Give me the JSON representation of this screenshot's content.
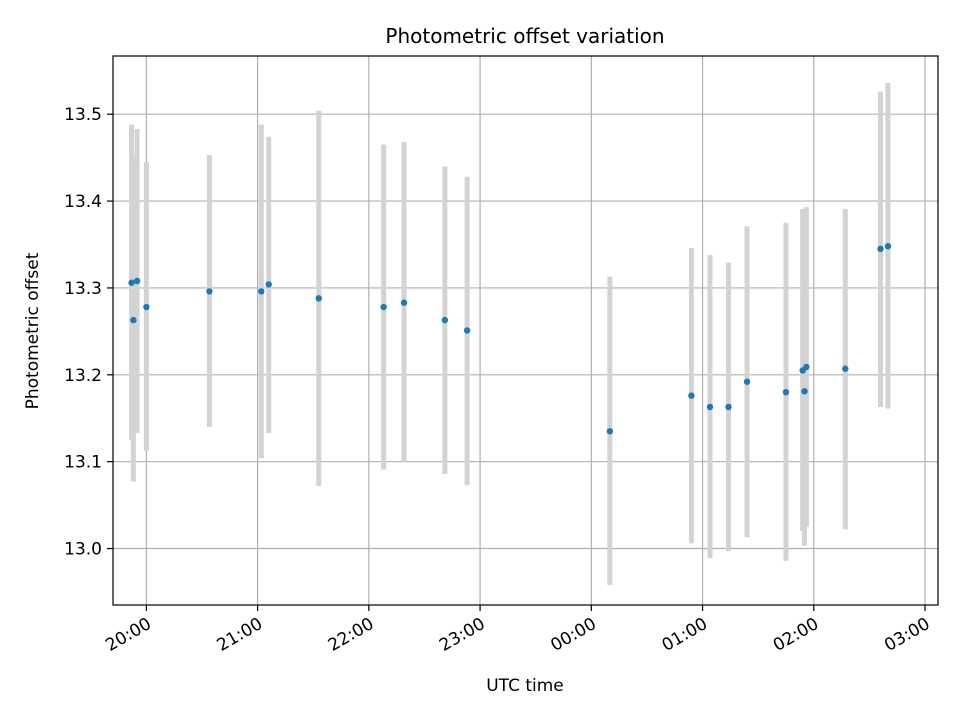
{
  "chart_data": {
    "type": "scatter",
    "title": "Photometric offset variation",
    "xlabel": "UTC time",
    "ylabel": "Photometric offset",
    "grid": true,
    "legend": "none",
    "xlim": [
      "19:42",
      "03:07"
    ],
    "ylim": [
      12.935,
      13.567
    ],
    "x_ticks": [
      "20:00",
      "21:00",
      "22:00",
      "23:00",
      "00:00",
      "01:00",
      "02:00",
      "03:00"
    ],
    "y_ticks": [
      "13.0",
      "13.1",
      "13.2",
      "13.3",
      "13.4",
      "13.5"
    ],
    "colors": {
      "point": "#1f77b4",
      "errorbar": "#d3d3d3",
      "grid": "#b0b0b0"
    },
    "series": [
      {
        "points": [
          {
            "time": "19:52",
            "y": 13.306,
            "lo": 13.125,
            "hi": 13.488
          },
          {
            "time": "19:53",
            "y": 13.263,
            "lo": 13.077,
            "hi": 13.45
          },
          {
            "time": "19:55",
            "y": 13.308,
            "lo": 13.133,
            "hi": 13.483
          },
          {
            "time": "20:00",
            "y": 13.278,
            "lo": 13.113,
            "hi": 13.445
          },
          {
            "time": "20:34",
            "y": 13.296,
            "lo": 13.14,
            "hi": 13.453
          },
          {
            "time": "21:02",
            "y": 13.296,
            "lo": 13.104,
            "hi": 13.488
          },
          {
            "time": "21:06",
            "y": 13.304,
            "lo": 13.133,
            "hi": 13.474
          },
          {
            "time": "21:33",
            "y": 13.288,
            "lo": 13.072,
            "hi": 13.504
          },
          {
            "time": "22:08",
            "y": 13.278,
            "lo": 13.091,
            "hi": 13.465
          },
          {
            "time": "22:19",
            "y": 13.283,
            "lo": 13.099,
            "hi": 13.468
          },
          {
            "time": "22:41",
            "y": 13.263,
            "lo": 13.086,
            "hi": 13.44
          },
          {
            "time": "22:53",
            "y": 13.251,
            "lo": 13.073,
            "hi": 13.428
          },
          {
            "time": "00:10",
            "y": 13.135,
            "lo": 12.958,
            "hi": 13.313
          },
          {
            "time": "00:54",
            "y": 13.176,
            "lo": 13.006,
            "hi": 13.346
          },
          {
            "time": "01:04",
            "y": 13.163,
            "lo": 12.989,
            "hi": 13.338
          },
          {
            "time": "01:14",
            "y": 13.163,
            "lo": 12.997,
            "hi": 13.329
          },
          {
            "time": "01:24",
            "y": 13.192,
            "lo": 13.013,
            "hi": 13.371
          },
          {
            "time": "01:45",
            "y": 13.18,
            "lo": 12.986,
            "hi": 13.375
          },
          {
            "time": "01:54",
            "y": 13.205,
            "lo": 13.02,
            "hi": 13.391
          },
          {
            "time": "01:55",
            "y": 13.181,
            "lo": 13.003,
            "hi": 13.358
          },
          {
            "time": "01:56",
            "y": 13.209,
            "lo": 13.025,
            "hi": 13.393
          },
          {
            "time": "02:17",
            "y": 13.207,
            "lo": 13.022,
            "hi": 13.391
          },
          {
            "time": "02:36",
            "y": 13.345,
            "lo": 13.163,
            "hi": 13.526
          },
          {
            "time": "02:40",
            "y": 13.348,
            "lo": 13.161,
            "hi": 13.536
          }
        ]
      }
    ]
  }
}
